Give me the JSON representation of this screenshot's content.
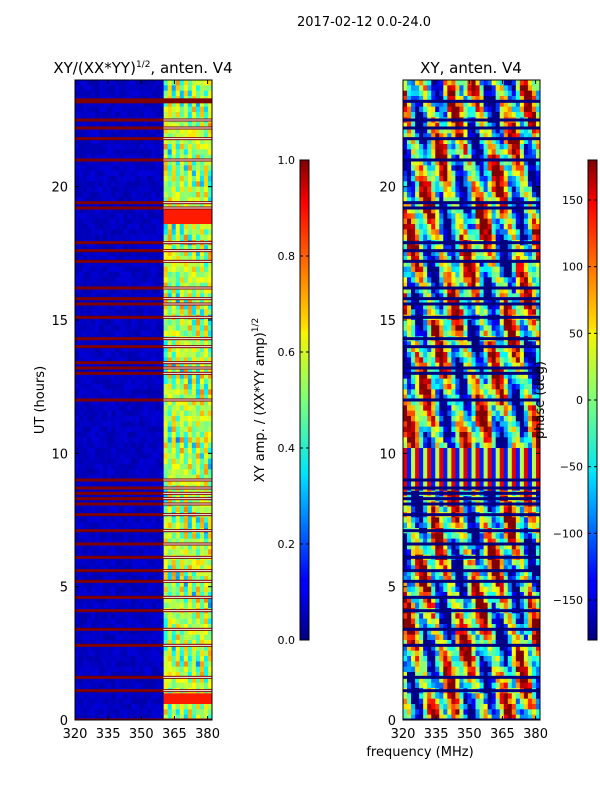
{
  "figure_title": "2017-02-12 0.0-24.0",
  "chart_data": [
    {
      "type": "heatmap",
      "title_main": "XY/(XX*YY)",
      "title_sup": "1/2",
      "title_tail": ", anten. V4",
      "xlabel": "",
      "ylabel": "UT (hours)",
      "xlim": [
        320,
        382
      ],
      "ylim": [
        0,
        24
      ],
      "xticks": [
        320,
        335,
        350,
        365,
        380
      ],
      "yticks": [
        0,
        5,
        10,
        15,
        20
      ],
      "colorbar": {
        "label_main": "XY amp. / (XX*YY amp)",
        "label_sup": "1/2",
        "range": [
          0.0,
          1.0
        ],
        "ticks": [
          "0.0",
          "0.2",
          "0.4",
          "0.6",
          "0.8",
          "1.0"
        ],
        "colormap": "jet"
      },
      "description_values": {
        "background_value": 0.05,
        "signal_freq_start": 360,
        "flag_rows_ut": [
          0.0,
          1.1,
          1.6,
          2.8,
          3.4,
          4.1,
          4.6,
          5.2,
          5.6,
          6.1,
          6.6,
          7.1,
          7.7,
          8.1,
          8.3,
          8.5,
          8.7,
          9.0,
          12.0,
          13.0,
          13.2,
          13.4,
          14.0,
          14.3,
          15.1,
          15.6,
          15.8,
          16.2,
          17.2,
          17.6,
          17.9,
          19.2,
          19.4,
          21.0,
          21.8,
          22.2,
          22.5,
          23.2
        ],
        "bright_rows_ut": [
          0.8,
          18.8,
          19.0
        ]
      }
    },
    {
      "type": "heatmap",
      "title": "XY, anten. V4",
      "xlabel": "frequency (MHz)",
      "ylabel": "",
      "xlim": [
        320,
        382
      ],
      "ylim": [
        0,
        24
      ],
      "xticks": [
        320,
        335,
        350,
        365,
        380
      ],
      "yticks": [
        0,
        5,
        10,
        15,
        20
      ],
      "colorbar": {
        "label": "phase (deg)",
        "range": [
          -180,
          180
        ],
        "ticks": [
          "−150",
          "−100",
          "−50",
          "0",
          "50",
          "100",
          "150"
        ],
        "tick_values": [
          -150,
          -100,
          -50,
          0,
          50,
          100,
          150
        ],
        "colormap": "jet"
      },
      "description_values": {
        "flag_rows_ut": [
          0.0,
          1.1,
          1.6,
          2.8,
          3.4,
          4.1,
          4.6,
          5.2,
          5.6,
          6.1,
          6.6,
          7.1,
          7.7,
          8.1,
          8.3,
          8.5,
          8.7,
          9.0,
          12.0,
          13.0,
          13.2,
          14.0,
          14.3,
          15.1,
          15.6,
          15.8,
          16.2,
          17.2,
          17.6,
          17.9,
          19.2,
          19.4,
          21.0,
          21.8,
          22.2,
          22.5,
          23.2
        ]
      }
    }
  ]
}
